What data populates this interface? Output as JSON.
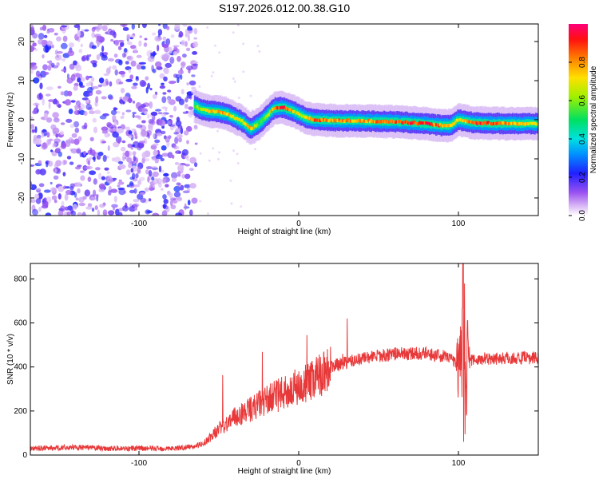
{
  "title": "S197.2026.012.00.38.G10",
  "colors": {
    "snr_line": "#e8393a",
    "frame": "#000000",
    "background": "#ffffff"
  },
  "chart_data": [
    {
      "type": "heatmap",
      "name": "spectrogram",
      "xlabel": "Height of straight line (km)",
      "ylabel": "Frequency (Hz)",
      "xlim": [
        -168,
        150
      ],
      "ylim": [
        -24.5,
        24.5
      ],
      "xticks": [
        -100,
        0,
        100
      ],
      "yticks": [
        -20,
        -10,
        0,
        10,
        20
      ],
      "noise_region_x": [
        -168,
        -64
      ],
      "ridge": {
        "x": [
          -65,
          -60,
          -55,
          -50,
          -45,
          -40,
          -35,
          -30,
          -25,
          -20,
          -15,
          -10,
          -5,
          0,
          5,
          10,
          20,
          40,
          60,
          80,
          90,
          95,
          100,
          110,
          130,
          150
        ],
        "freq": [
          3.5,
          2.5,
          2.2,
          2.0,
          1.6,
          0.5,
          -0.5,
          -2.3,
          -1.0,
          1.0,
          3.0,
          3.2,
          2.5,
          1.5,
          0.5,
          0.0,
          -0.2,
          -0.3,
          -0.5,
          -1.0,
          -1.5,
          -1.5,
          0.0,
          -0.8,
          -1.0,
          -1.0
        ],
        "amp": [
          0.6,
          0.7,
          0.75,
          0.8,
          0.8,
          0.75,
          0.7,
          0.85,
          0.6,
          0.6,
          0.9,
          0.95,
          0.8,
          0.7,
          0.75,
          0.9,
          0.85,
          0.8,
          0.9,
          0.95,
          0.85,
          0.8,
          0.7,
          0.95,
          0.85,
          0.7
        ]
      },
      "colorbar": {
        "label": "Normalized spectral amplitude",
        "range": [
          0,
          1
        ],
        "ticks": [
          0.0,
          0.2,
          0.4,
          0.6,
          0.8
        ],
        "tick_labels": [
          "0.0",
          "0.2",
          "0.4",
          "0.6",
          "0.8"
        ]
      }
    },
    {
      "type": "line",
      "name": "snr",
      "xlabel": "Height of straight line (km)",
      "ylabel": "SNR (10 * v/v)",
      "xlim": [
        -168,
        150
      ],
      "ylim": [
        0,
        870
      ],
      "xticks": [
        -100,
        0,
        100
      ],
      "yticks": [
        0,
        200,
        400,
        600,
        800
      ],
      "trend": {
        "x": [
          -168,
          -140,
          -120,
          -100,
          -80,
          -70,
          -60,
          -55,
          -50,
          -40,
          -30,
          -20,
          -10,
          0,
          10,
          20,
          30,
          40,
          50,
          60,
          70,
          80,
          90,
          95,
          100,
          110,
          120,
          130,
          140,
          150
        ],
        "y": [
          30,
          35,
          30,
          30,
          30,
          35,
          50,
          80,
          120,
          170,
          210,
          250,
          280,
          300,
          350,
          400,
          420,
          440,
          450,
          460,
          460,
          460,
          450,
          440,
          420,
          430,
          440,
          440,
          440,
          440
        ]
      },
      "peak": {
        "x": 103,
        "y": 870,
        "min_y": 60
      }
    }
  ]
}
